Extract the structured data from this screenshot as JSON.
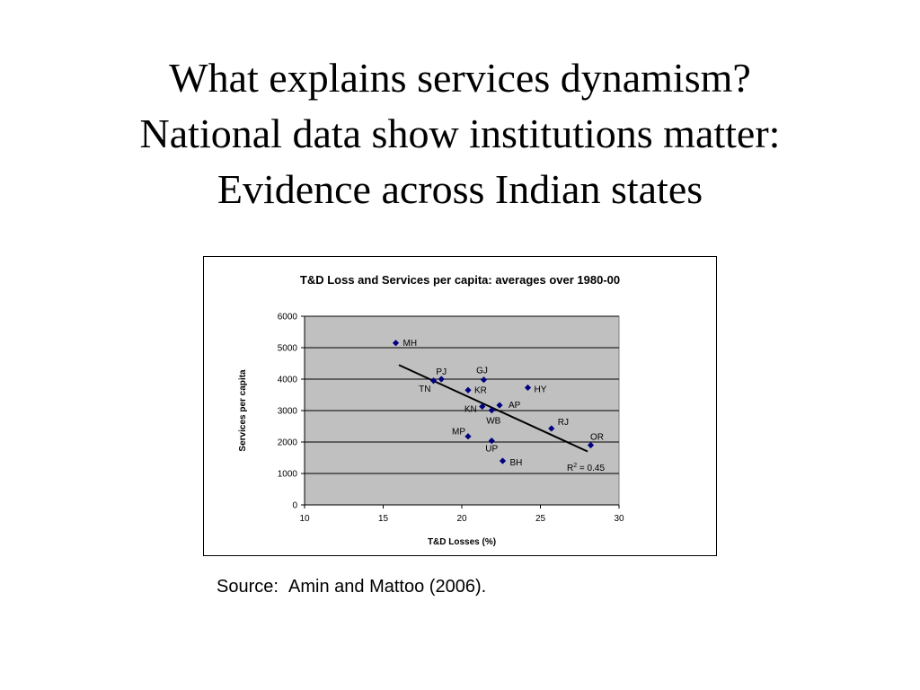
{
  "slide": {
    "title_lines": [
      "What explains services dynamism?",
      "National data show institutions matter:",
      "Evidence across Indian states"
    ],
    "source": "Source:  Amin and Mattoo (2006)."
  },
  "chart_data": {
    "type": "scatter",
    "title": "T&D Loss and Services per capita: averages over 1980-00",
    "xlabel": "T&D Losses (%)",
    "ylabel": "Services per capita",
    "xlim": [
      10,
      30
    ],
    "ylim": [
      0,
      6000
    ],
    "xticks": [
      10,
      15,
      20,
      25,
      30
    ],
    "yticks": [
      0,
      1000,
      2000,
      3000,
      4000,
      5000,
      6000
    ],
    "grid": "horizontal",
    "plot_background": "#c0c0c0",
    "marker_color": "#000080",
    "points": [
      {
        "label": "MH",
        "x": 15.8,
        "y": 5150
      },
      {
        "label": "PJ",
        "x": 18.7,
        "y": 4000
      },
      {
        "label": "TN",
        "x": 18.2,
        "y": 3950
      },
      {
        "label": "GJ",
        "x": 21.4,
        "y": 3980
      },
      {
        "label": "KR",
        "x": 20.4,
        "y": 3650
      },
      {
        "label": "HY",
        "x": 24.2,
        "y": 3730
      },
      {
        "label": "KN",
        "x": 21.3,
        "y": 3130
      },
      {
        "label": "AP",
        "x": 22.4,
        "y": 3170
      },
      {
        "label": "WB",
        "x": 21.9,
        "y": 3010
      },
      {
        "label": "RJ",
        "x": 25.7,
        "y": 2430
      },
      {
        "label": "MP",
        "x": 20.4,
        "y": 2180
      },
      {
        "label": "UP",
        "x": 21.9,
        "y": 2040
      },
      {
        "label": "BH",
        "x": 22.6,
        "y": 1400
      },
      {
        "label": "OR",
        "x": 28.2,
        "y": 1900
      }
    ],
    "trendline": {
      "x": [
        16.0,
        28.0
      ],
      "y": [
        4450,
        1700
      ]
    },
    "r_squared": {
      "base": "R",
      "sup": "2",
      "rest": " = 0.45"
    }
  }
}
